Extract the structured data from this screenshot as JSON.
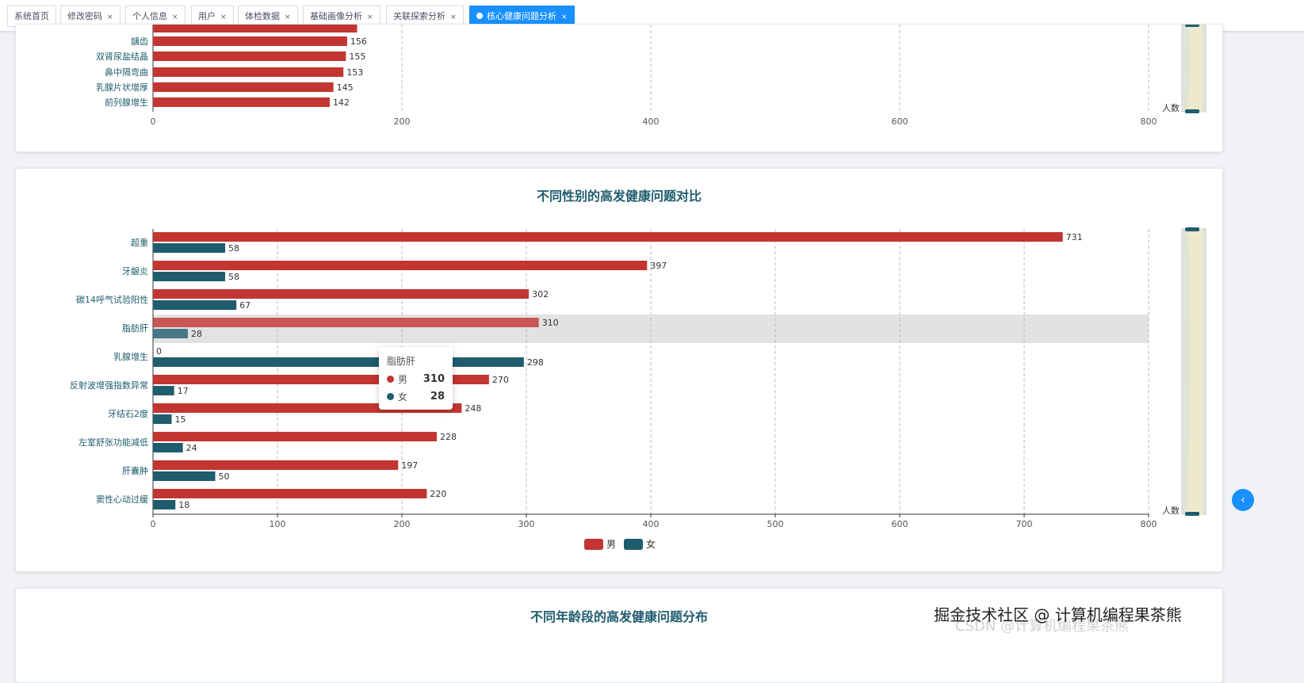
{
  "tabs": [
    {
      "label": "系统首页",
      "closable": false,
      "active": false
    },
    {
      "label": "修改密码",
      "closable": true,
      "active": false
    },
    {
      "label": "个人信息",
      "closable": true,
      "active": false
    },
    {
      "label": "用户",
      "closable": true,
      "active": false
    },
    {
      "label": "体检数据",
      "closable": true,
      "active": false
    },
    {
      "label": "基础画像分析",
      "closable": true,
      "active": false
    },
    {
      "label": "关联探索分析",
      "closable": true,
      "active": false
    },
    {
      "label": "核心健康问题分析",
      "closable": true,
      "active": true
    }
  ],
  "close_glyph": "×",
  "top_chart": {
    "type": "bar",
    "orientation": "horizontal",
    "categories": [
      "龋齿",
      "双肾尿盐结晶",
      "鼻中隔弯曲",
      "乳腺片状增厚",
      "前列腺增生"
    ],
    "values": [
      156,
      155,
      153,
      145,
      142
    ],
    "x_ticks": [
      "0",
      "200",
      "400",
      "600",
      "800"
    ],
    "xlim": [
      0,
      800
    ],
    "zoom_label": "人数",
    "color": "#c23531"
  },
  "gender_chart": {
    "title": "不同性别的高发健康问题对比",
    "chart_data": {
      "type": "bar",
      "orientation": "horizontal",
      "categories": [
        "超重",
        "牙龈炎",
        "碳14呼气试验阳性",
        "脂肪肝",
        "乳腺增生",
        "反射波增强指数异常",
        "牙结石2度",
        "左室舒张功能减低",
        "肝囊肿",
        "窦性心动过缓"
      ],
      "series": [
        {
          "name": "男",
          "color": "#c23531",
          "values": [
            731,
            397,
            302,
            310,
            0,
            270,
            248,
            228,
            197,
            220
          ]
        },
        {
          "name": "女",
          "color": "#1f5c6e",
          "values": [
            58,
            58,
            67,
            28,
            298,
            17,
            15,
            24,
            50,
            18
          ]
        }
      ],
      "x_ticks": [
        "0",
        "100",
        "200",
        "300",
        "400",
        "500",
        "600",
        "700",
        "800"
      ],
      "xlim": [
        0,
        800
      ],
      "highlighted_category": "脂肪肝",
      "legend_position": "bottom-center",
      "zoom_label": "人数"
    },
    "tooltip": {
      "title": "脂肪肝",
      "rows": [
        {
          "name": "男",
          "value": "310",
          "color": "#c23531"
        },
        {
          "name": "女",
          "value": "28",
          "color": "#1f5c6e"
        }
      ]
    }
  },
  "age_chart": {
    "title": "不同年龄段的高发健康问题分布"
  },
  "watermark": "掘金技术社区 @ 计算机编程果茶熊",
  "watermark_faded": "CSDN @计算机编程果茶熊"
}
